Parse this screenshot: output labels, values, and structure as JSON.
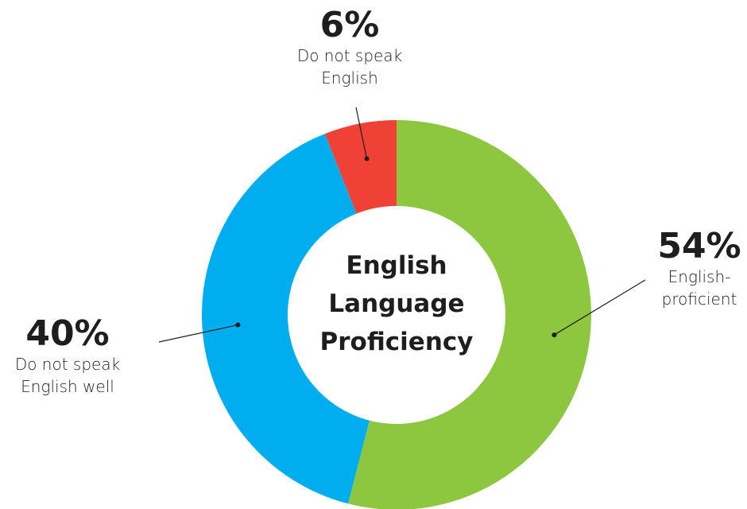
{
  "chart_data": {
    "type": "donut",
    "center_label": "English Language Proficiency",
    "categories": [
      "English-proficient",
      "Do not speak English well",
      "Do not speak English"
    ],
    "values": [
      54,
      40,
      6
    ],
    "value_labels": [
      "54%",
      "40%",
      "6%"
    ],
    "colors": [
      "#8dc63f",
      "#00aeef",
      "#ef4136"
    ]
  }
}
